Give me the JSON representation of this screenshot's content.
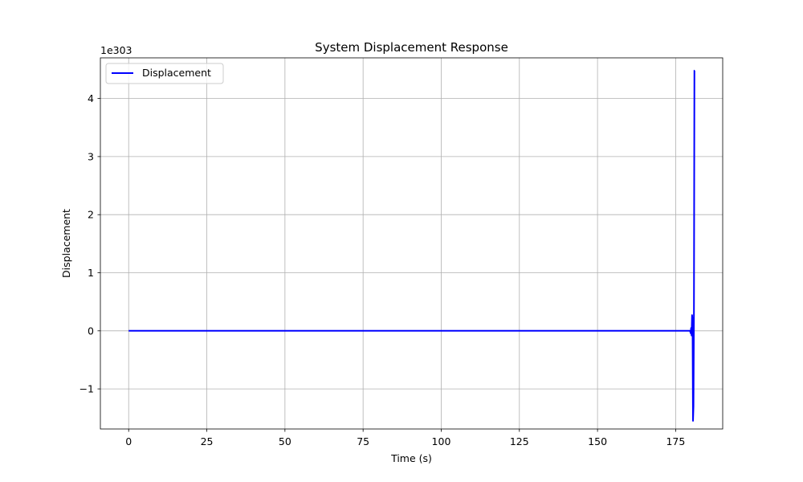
{
  "chart_data": {
    "type": "line",
    "title": "System Displacement Response",
    "xlabel": "Time (s)",
    "ylabel": "Displacement",
    "y_offset_label": "1e303",
    "xlim": [
      -9.05,
      190.05
    ],
    "ylim": [
      -1.69,
      4.7
    ],
    "x_ticks": [
      0,
      25,
      50,
      75,
      100,
      125,
      150,
      175
    ],
    "x_tick_labels": [
      "0",
      "25",
      "50",
      "75",
      "100",
      "125",
      "150",
      "175"
    ],
    "y_ticks": [
      -1,
      0,
      1,
      2,
      3,
      4
    ],
    "y_tick_labels": [
      "−1",
      "0",
      "1",
      "2",
      "3",
      "4"
    ],
    "grid": true,
    "legend_position": "top-left",
    "colors": {
      "series": "#0000ff",
      "grid": "#b0b0b0",
      "axes": "#000000"
    },
    "series": [
      {
        "name": "Displacement",
        "x": [
          0,
          50,
          100,
          150,
          179.6,
          179.8,
          179.95,
          180.1,
          180.25,
          180.4,
          180.55,
          180.7,
          180.85,
          181,
          181.1
        ],
        "y": [
          0,
          0,
          0,
          0,
          0,
          -0.04,
          0.05,
          -0.08,
          0.27,
          0.18,
          -1.55,
          -1.3,
          0.35,
          4.48,
          4.48
        ]
      }
    ]
  }
}
